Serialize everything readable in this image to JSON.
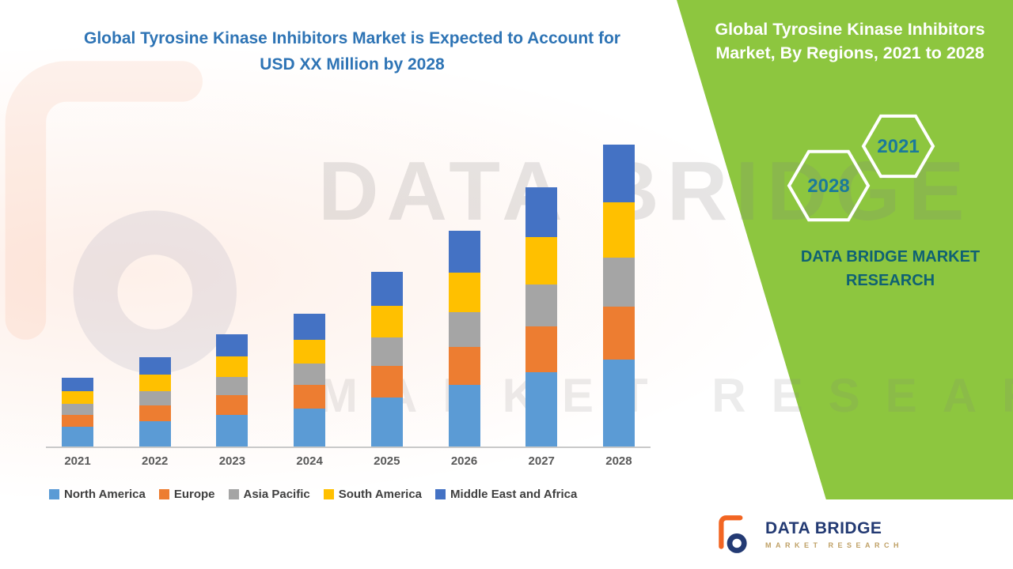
{
  "left": {
    "title_line1": "Global Tyrosine Kinase Inhibitors Market is Expected to Account for",
    "title_line2": "USD XX Million by 2028"
  },
  "right_panel": {
    "title": "Global Tyrosine Kinase Inhibitors Market, By Regions, 2021 to 2028",
    "badge_back": "2028",
    "badge_front": "2021",
    "brand_line1": "DATA BRIDGE MARKET",
    "brand_line2": "RESEARCH"
  },
  "watermark": {
    "line1": "DATA BRIDGE",
    "line2": "MARKET RESEARCH"
  },
  "footer": {
    "brand": "DATA BRIDGE",
    "sub": "MARKET RESEARCH"
  },
  "colors": {
    "panel_green": "#8DC63F",
    "title_blue": "#2E74B5",
    "badge_text_teal": "#1B7A9B",
    "brand_teal": "#0F6173",
    "footer_navy": "#233A73",
    "footer_gold": "#BFA065",
    "logo_orange": "#F26522"
  },
  "chart_data": {
    "type": "bar",
    "stacked": true,
    "title": "Global Tyrosine Kinase Inhibitors Market, By Regions, 2021 to 2028",
    "xlabel": "",
    "ylabel": "",
    "y_axis_visible": false,
    "grid": false,
    "legend_position": "bottom",
    "units_note": "USD XX Million (y-axis values not labeled; series values are relative estimates from bar heights)",
    "ylim": [
      0,
      400
    ],
    "categories": [
      "2021",
      "2022",
      "2023",
      "2024",
      "2025",
      "2026",
      "2027",
      "2028"
    ],
    "series": [
      {
        "name": "North America",
        "color": "#5B9BD5",
        "values": [
          25,
          32,
          40,
          48,
          62,
          78,
          94,
          110
        ]
      },
      {
        "name": "Europe",
        "color": "#ED7D31",
        "values": [
          15,
          20,
          25,
          30,
          40,
          48,
          58,
          67
        ]
      },
      {
        "name": "Asia Pacific",
        "color": "#A5A5A5",
        "values": [
          14,
          18,
          23,
          27,
          36,
          44,
          53,
          62
        ]
      },
      {
        "name": "South America",
        "color": "#FFC000",
        "values": [
          16,
          21,
          26,
          30,
          40,
          50,
          60,
          70
        ]
      },
      {
        "name": "Middle East and Africa",
        "color": "#4472C4",
        "values": [
          17,
          22,
          28,
          33,
          43,
          53,
          63,
          73
        ]
      }
    ]
  }
}
